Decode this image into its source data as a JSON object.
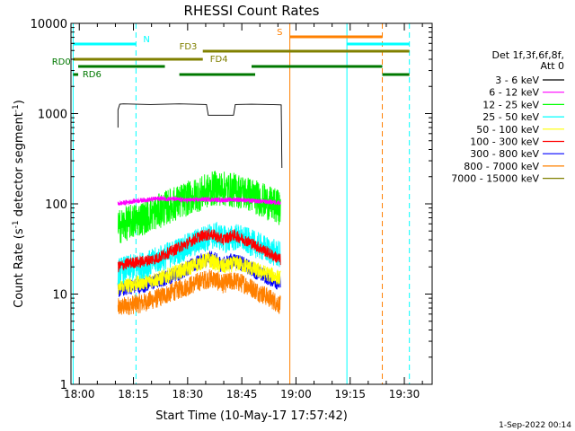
{
  "chart_data": {
    "type": "line",
    "title": "RHESSI Count Rates",
    "xlabel": "Start Time (10-May-17 17:57:42)",
    "ylabel": "Count Rate (s⁻¹ detector segment⁻¹)",
    "ylabel_main": "Count Rate (s",
    "ylabel_mid": " detector segment",
    "ylabel_close": ")",
    "ylabel_sup": "-1",
    "x_unit": "minutes since 17:57:42",
    "xlim": [
      0,
      100
    ],
    "ylim": [
      1,
      10000
    ],
    "yscale": "log",
    "x_ticks": [
      {
        "label": "18:00",
        "value": 2.3
      },
      {
        "label": "18:15",
        "value": 17.3
      },
      {
        "label": "18:30",
        "value": 32.3
      },
      {
        "label": "18:45",
        "value": 47.3
      },
      {
        "label": "19:00",
        "value": 62.3
      },
      {
        "label": "19:15",
        "value": 77.3
      },
      {
        "label": "19:30",
        "value": 92.3
      }
    ],
    "y_ticks": [
      {
        "label": "1",
        "value": 1
      },
      {
        "label": "10",
        "value": 10
      },
      {
        "label": "100",
        "value": 100
      },
      {
        "label": "1000",
        "value": 1000
      },
      {
        "label": "10000",
        "value": 10000
      }
    ],
    "legend": {
      "placement": "right",
      "header": [
        "Det 1f,3f,6f,8f,",
        "Att 0"
      ],
      "entries": [
        {
          "label": "3 - 6 keV",
          "color": "#000000"
        },
        {
          "label": "6 - 12 keV",
          "color": "#ff00ff"
        },
        {
          "label": "12 - 25 keV",
          "color": "#00ff00"
        },
        {
          "label": "25 - 50 keV",
          "color": "#00ffff"
        },
        {
          "label": "50 - 100 keV",
          "color": "#ffff00"
        },
        {
          "label": "100 - 300 keV",
          "color": "#ff0000"
        },
        {
          "label": "300 - 800 keV",
          "color": "#0000ff"
        },
        {
          "label": "800 - 7000 keV",
          "color": "#ff8000"
        },
        {
          "label": "7000 - 15000 keV",
          "color": "#808000"
        }
      ]
    },
    "series": [
      {
        "name": "3 - 6 keV",
        "color": "#000000",
        "x": [
          13.0,
          13.0,
          13.5,
          14.5,
          22,
          30,
          37.5,
          38,
          42,
          45,
          45.5,
          50,
          55,
          58.2,
          58.4
        ],
        "y": [
          700,
          1100,
          1270,
          1280,
          1260,
          1280,
          1260,
          960,
          960,
          960,
          1260,
          1270,
          1260,
          1250,
          250
        ]
      },
      {
        "name": "6 - 12 keV",
        "color": "#ff00ff",
        "x": [
          13,
          18,
          25,
          32,
          38,
          42,
          46,
          50,
          55,
          58
        ],
        "y": [
          100,
          108,
          115,
          110,
          112,
          110,
          112,
          108,
          105,
          103
        ]
      },
      {
        "name": "12 - 25 keV",
        "color": "#00ff00",
        "x": [
          13,
          16,
          20,
          25,
          30,
          35,
          40,
          43,
          46,
          50,
          55,
          58
        ],
        "y": [
          55,
          62,
          70,
          85,
          105,
          125,
          150,
          145,
          140,
          125,
          100,
          90
        ]
      },
      {
        "name": "25 - 50 keV",
        "color": "#00ffff",
        "x": [
          13,
          18,
          22,
          27,
          32,
          36,
          40,
          43,
          46,
          50,
          55,
          58
        ],
        "y": [
          18,
          20,
          22,
          27,
          33,
          40,
          45,
          40,
          43,
          37,
          30,
          27
        ]
      },
      {
        "name": "50 - 100 keV",
        "color": "#ffff00",
        "x": [
          13,
          18,
          25,
          32,
          38,
          42,
          46,
          52,
          58
        ],
        "y": [
          12,
          13,
          15,
          19,
          24,
          20,
          22,
          18,
          15
        ]
      },
      {
        "name": "100 - 300 keV",
        "color": "#ff0000",
        "x": [
          13,
          16,
          20,
          24,
          28,
          32,
          36,
          39,
          42,
          45,
          48,
          52,
          55,
          58
        ],
        "y": [
          20,
          22,
          23,
          25,
          30,
          36,
          44,
          46,
          40,
          45,
          40,
          33,
          28,
          24
        ]
      },
      {
        "name": "300 - 800 keV",
        "color": "#0000ff",
        "x": [
          13,
          16,
          20,
          24,
          28,
          32,
          36,
          39,
          42,
          45,
          48,
          52,
          55,
          58
        ],
        "y": [
          11,
          12,
          12.5,
          14,
          16,
          19,
          23,
          25,
          21,
          24,
          21,
          17,
          15,
          13
        ]
      },
      {
        "name": "800 - 7000 keV",
        "color": "#ff8000",
        "x": [
          13,
          16,
          20,
          24,
          28,
          32,
          36,
          39,
          42,
          45,
          48,
          52,
          55,
          58
        ],
        "y": [
          7,
          7.5,
          8,
          9,
          10.5,
          12,
          14,
          15,
          13,
          14,
          13,
          10.5,
          9,
          7.5
        ]
      }
    ],
    "vertical_lines": [
      {
        "x": 0.6,
        "color": "#00ffff",
        "style": "solid"
      },
      {
        "x": 18.0,
        "color": "#00ffff",
        "style": "dashed"
      },
      {
        "x": 60.6,
        "color": "#ff8000",
        "style": "solid"
      },
      {
        "x": 76.4,
        "color": "#00ffff",
        "style": "solid"
      },
      {
        "x": 86.2,
        "color": "#ff8000",
        "style": "dashed"
      },
      {
        "x": 93.7,
        "color": "#00ffff",
        "style": "dashed"
      }
    ],
    "flag_bars": [
      {
        "label": "N",
        "label_x": 20.0,
        "row": 1,
        "color": "#00ffff",
        "segments": [
          [
            0.6,
            18.0
          ],
          [
            76.4,
            93.7
          ]
        ]
      },
      {
        "label": "S",
        "label_x": 57.0,
        "row": 0,
        "color": "#ff8000",
        "segments": [
          [
            60.6,
            86.2
          ]
        ]
      },
      {
        "label": "FD3",
        "label_x": 30.0,
        "row": 2,
        "color": "#808000",
        "segments": [
          [
            36.5,
            93.7
          ]
        ]
      },
      {
        "label": "FD4",
        "label_x": 38.5,
        "row": 3,
        "color": "#808000",
        "segments": [
          [
            0.6,
            36.5
          ]
        ]
      },
      {
        "label": "RD0",
        "label_x": -5.3,
        "row": 4,
        "color": "#007800",
        "segments": [
          [
            2.0,
            26.0
          ],
          [
            50.0,
            86.2
          ]
        ]
      },
      {
        "label": "RD6",
        "label_x": 3.2,
        "row": 5,
        "color": "#007800",
        "segments": [
          [
            0.6,
            2.0
          ],
          [
            30.0,
            51.0
          ],
          [
            86.2,
            93.7
          ]
        ]
      }
    ],
    "grid": false
  },
  "footer": {
    "date_stamp": "1-Sep-2022 00:14"
  }
}
